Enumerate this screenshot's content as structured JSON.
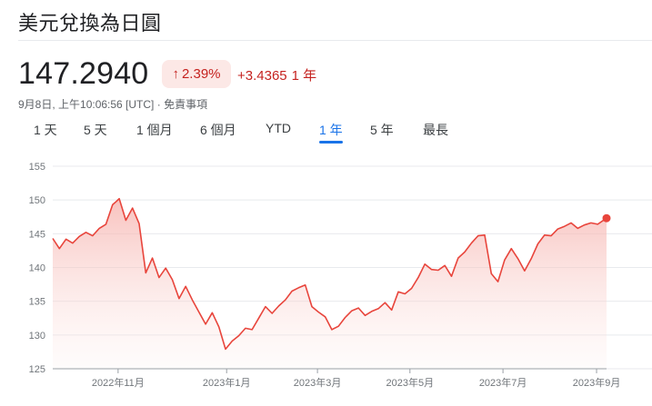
{
  "header": {
    "title": "美元兌換為日圓"
  },
  "quote": {
    "price": "147.2940",
    "percent_change": "2.39%",
    "direction": "up",
    "absolute_change": "+3.4365",
    "period_label": "1 年",
    "timestamp": "9月8日, 上午10:06:56 [UTC]",
    "separator": " · ",
    "disclaimer": "免責事項"
  },
  "tabs": [
    {
      "label": "1 天",
      "active": false
    },
    {
      "label": "5 天",
      "active": false
    },
    {
      "label": "1 個月",
      "active": false
    },
    {
      "label": "6 個月",
      "active": false
    },
    {
      "label": "YTD",
      "active": false
    },
    {
      "label": "1 年",
      "active": true
    },
    {
      "label": "5 年",
      "active": false
    },
    {
      "label": "最長",
      "active": false
    }
  ],
  "colors": {
    "accent": "#1a73e8",
    "negative": "#c5221f",
    "line": "#e8453c",
    "fill": "#fce8e6",
    "grid": "#e8eaed"
  },
  "chart_data": {
    "type": "area",
    "title": "",
    "xlabel": "",
    "ylabel": "",
    "ylim": [
      125,
      155
    ],
    "yticks": [
      125,
      130,
      135,
      140,
      145,
      150,
      155
    ],
    "xticks": [
      {
        "label": "2022年11月",
        "x": 0.118
      },
      {
        "label": "2023年1月",
        "x": 0.314
      },
      {
        "label": "2023年3月",
        "x": 0.478
      },
      {
        "label": "2023年5月",
        "x": 0.645
      },
      {
        "label": "2023年7月",
        "x": 0.813
      },
      {
        "label": "2023年9月",
        "x": 0.982
      }
    ],
    "series": [
      {
        "name": "",
        "x": [
          0,
          0.012,
          0.024,
          0.036,
          0.048,
          0.06,
          0.072,
          0.084,
          0.096,
          0.108,
          0.115,
          0.12,
          0.132,
          0.144,
          0.156,
          0.168,
          0.18,
          0.192,
          0.204,
          0.216,
          0.228,
          0.24,
          0.252,
          0.264,
          0.276,
          0.288,
          0.3,
          0.312,
          0.324,
          0.336,
          0.348,
          0.36,
          0.372,
          0.384,
          0.396,
          0.408,
          0.42,
          0.432,
          0.444,
          0.456,
          0.468,
          0.48,
          0.492,
          0.504,
          0.516,
          0.528,
          0.54,
          0.552,
          0.564,
          0.576,
          0.588,
          0.6,
          0.612,
          0.624,
          0.636,
          0.648,
          0.66,
          0.672,
          0.684,
          0.696,
          0.708,
          0.72,
          0.732,
          0.744,
          0.756,
          0.768,
          0.78,
          0.792,
          0.804,
          0.816,
          0.828,
          0.84,
          0.852,
          0.864,
          0.876,
          0.888,
          0.9,
          0.912,
          0.924,
          0.936,
          0.948,
          0.96,
          0.972,
          0.984,
          1.0
        ],
        "values": [
          144.3,
          142.8,
          144.2,
          143.6,
          144.6,
          145.2,
          144.7,
          145.8,
          146.4,
          149.3,
          149.8,
          150.2,
          147.0,
          148.8,
          146.5,
          139.2,
          141.4,
          138.5,
          139.9,
          138.2,
          135.4,
          137.2,
          135.2,
          133.4,
          131.6,
          133.3,
          131.2,
          127.9,
          129.1,
          129.9,
          131.0,
          130.8,
          132.5,
          134.2,
          133.2,
          134.3,
          135.2,
          136.5,
          137.0,
          137.4,
          134.2,
          133.4,
          132.7,
          130.8,
          131.3,
          132.6,
          133.6,
          134.0,
          132.9,
          133.5,
          133.9,
          134.8,
          133.7,
          136.4,
          136.1,
          136.9,
          138.5,
          140.5,
          139.7,
          139.6,
          140.3,
          138.7,
          141.4,
          142.3,
          143.6,
          144.7,
          144.8,
          139.1,
          137.9,
          141.1,
          142.8,
          141.3,
          139.5,
          141.3,
          143.5,
          144.8,
          144.7,
          145.7,
          146.1,
          146.6,
          145.8,
          146.3,
          146.6,
          146.4,
          147.3
        ]
      }
    ],
    "legend": "none",
    "grid": true
  }
}
